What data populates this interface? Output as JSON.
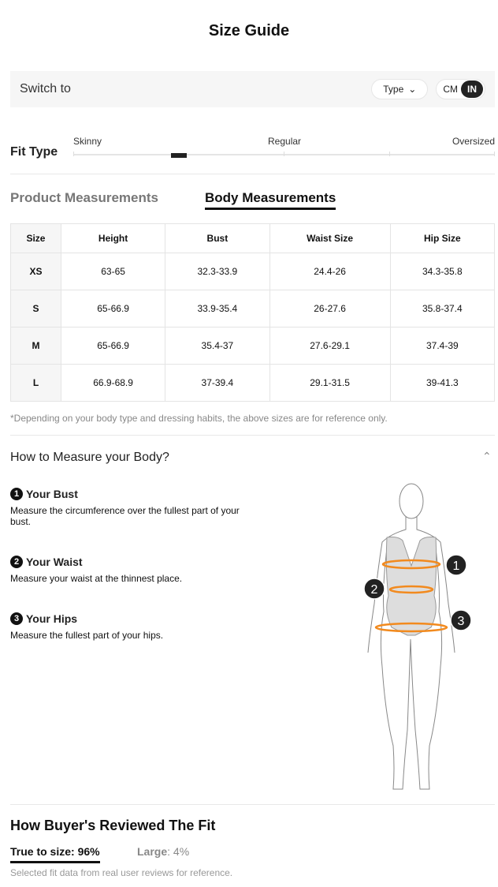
{
  "title": "Size Guide",
  "switch": {
    "label": "Switch to",
    "type_label": "Type",
    "units": [
      "CM",
      "IN"
    ],
    "selected_unit": "IN"
  },
  "fit": {
    "label": "Fit Type",
    "marks": [
      "Skinny",
      "Regular",
      "Oversized"
    ],
    "level_percent": 25
  },
  "tabs": [
    {
      "label": "Product Measurements",
      "active": false
    },
    {
      "label": "Body Measurements",
      "active": true
    }
  ],
  "table": {
    "headers": [
      "Size",
      "Height",
      "Bust",
      "Waist Size",
      "Hip Size"
    ],
    "rows": [
      [
        "XS",
        "63-65",
        "32.3-33.9",
        "24.4-26",
        "34.3-35.8"
      ],
      [
        "S",
        "65-66.9",
        "33.9-35.4",
        "26-27.6",
        "35.8-37.4"
      ],
      [
        "M",
        "65-66.9",
        "35.4-37",
        "27.6-29.1",
        "37.4-39"
      ],
      [
        "L",
        "66.9-68.9",
        "37-39.4",
        "29.1-31.5",
        "39-41.3"
      ]
    ]
  },
  "note": "*Depending on your body type and dressing habits, the above sizes are for reference only.",
  "howto": {
    "title": "How to Measure your Body?",
    "steps": [
      {
        "num": "1",
        "title": "Your Bust",
        "text": "Measure the circumference over the fullest part of your bust."
      },
      {
        "num": "2",
        "title": "Your Waist",
        "text": "Measure your waist at the thinnest place."
      },
      {
        "num": "3",
        "title": "Your Hips",
        "text": "Measure the fullest part of your hips."
      }
    ]
  },
  "reviews": {
    "title": "How Buyer's Reviewed The Fit",
    "true_label": "True to size: 96%",
    "large_label": "Large",
    "large_value": ": 4%",
    "note": "Selected fit data from real user reviews for reference."
  },
  "colors": {
    "accent": "#222222",
    "measure_line": "#f28a1e"
  }
}
